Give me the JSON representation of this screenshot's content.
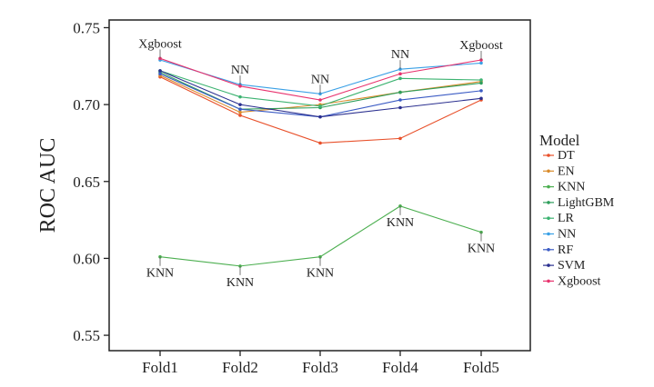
{
  "chart_data": {
    "type": "line",
    "title": "",
    "xlabel": "",
    "ylabel": "ROC AUC",
    "categories": [
      "Fold1",
      "Fold2",
      "Fold3",
      "Fold4",
      "Fold5"
    ],
    "ylim": [
      0.54,
      0.755
    ],
    "yticks": [
      0.55,
      0.6,
      0.65,
      0.7,
      0.75
    ],
    "ytick_labels": [
      "0.55",
      "0.60",
      "0.65",
      "0.70",
      "0.75"
    ],
    "grid": false,
    "legend": {
      "title": "Model",
      "placement": "right"
    },
    "series": [
      {
        "name": "DT",
        "color": "#e8502a",
        "values": [
          0.718,
          0.693,
          0.675,
          0.678,
          0.703
        ]
      },
      {
        "name": "EN",
        "color": "#d98b2b",
        "values": [
          0.719,
          0.695,
          0.7,
          0.708,
          0.715
        ]
      },
      {
        "name": "KNN",
        "color": "#4caf50",
        "values": [
          0.601,
          0.595,
          0.601,
          0.634,
          0.617
        ]
      },
      {
        "name": "LightGBM",
        "color": "#2e9e5b",
        "values": [
          0.721,
          0.697,
          0.698,
          0.708,
          0.714
        ]
      },
      {
        "name": "LR",
        "color": "#3cb371",
        "values": [
          0.722,
          0.705,
          0.699,
          0.717,
          0.716
        ]
      },
      {
        "name": "NN",
        "color": "#3aa0e6",
        "values": [
          0.729,
          0.713,
          0.707,
          0.723,
          0.727
        ]
      },
      {
        "name": "RF",
        "color": "#3b5bc4",
        "values": [
          0.72,
          0.697,
          0.692,
          0.703,
          0.709
        ]
      },
      {
        "name": "SVM",
        "color": "#2a2f8f",
        "values": [
          0.722,
          0.7,
          0.692,
          0.698,
          0.704
        ]
      },
      {
        "name": "Xgboost",
        "color": "#e8336e",
        "values": [
          0.73,
          0.712,
          0.703,
          0.72,
          0.729
        ]
      }
    ],
    "annotations": [
      {
        "text": "Xgboost",
        "x": "Fold1",
        "y": 0.73,
        "position": "above"
      },
      {
        "text": "NN",
        "x": "Fold2",
        "y": 0.713,
        "position": "above"
      },
      {
        "text": "NN",
        "x": "Fold3",
        "y": 0.707,
        "position": "above"
      },
      {
        "text": "NN",
        "x": "Fold4",
        "y": 0.723,
        "position": "above"
      },
      {
        "text": "Xgboost",
        "x": "Fold5",
        "y": 0.729,
        "position": "above"
      },
      {
        "text": "KNN",
        "x": "Fold1",
        "y": 0.601,
        "position": "below"
      },
      {
        "text": "KNN",
        "x": "Fold2",
        "y": 0.595,
        "position": "below"
      },
      {
        "text": "KNN",
        "x": "Fold3",
        "y": 0.601,
        "position": "below"
      },
      {
        "text": "KNN",
        "x": "Fold4",
        "y": 0.634,
        "position": "below"
      },
      {
        "text": "KNN",
        "x": "Fold5",
        "y": 0.617,
        "position": "below"
      }
    ]
  }
}
